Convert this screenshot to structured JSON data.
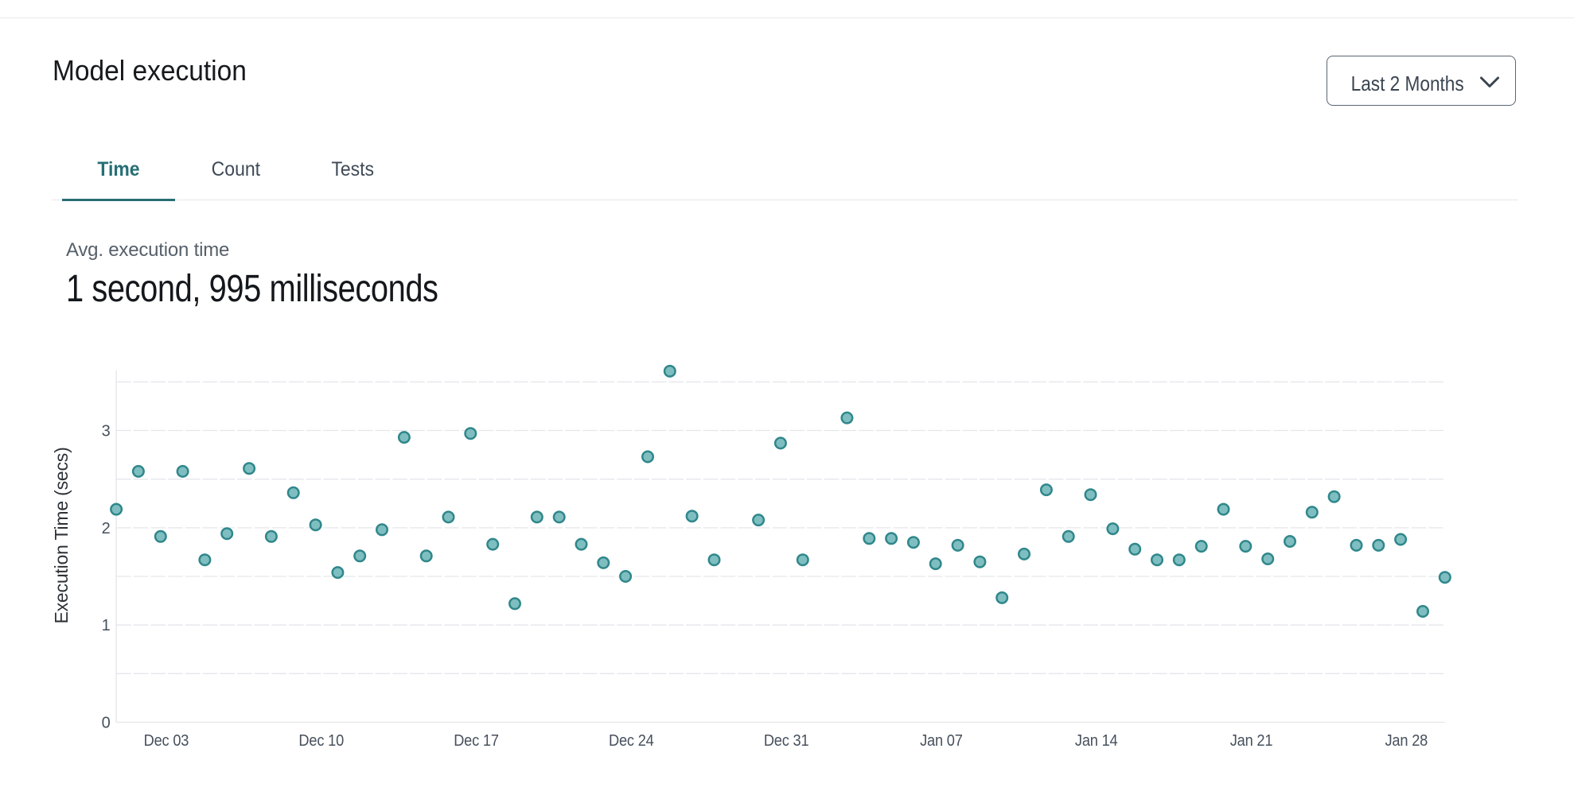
{
  "header": {
    "title": "Model execution",
    "range_selector": {
      "label": "Last 2 Months",
      "icon": "chevron-down-icon"
    }
  },
  "tabs": [
    {
      "label": "Time",
      "active": true
    },
    {
      "label": "Count",
      "active": false
    },
    {
      "label": "Tests",
      "active": false
    }
  ],
  "metric": {
    "label": "Avg. execution time",
    "value": "1 second, 995 milliseconds"
  },
  "colors": {
    "accent_teal": "#266e74",
    "dot_fill": "#7fbec0",
    "dot_stroke": "#2f878b",
    "grid_line": "#e5e6eb",
    "axis_line": "#e4e5e9",
    "tick_text": "#46505c"
  },
  "chart_data": {
    "type": "scatter",
    "title": "",
    "xlabel": "",
    "ylabel": "Execution Time (secs)",
    "x_tick_labels": [
      "Dec 03",
      "Dec 10",
      "Dec 17",
      "Dec 24",
      "Dec 31",
      "Jan 07",
      "Jan 14",
      "Jan 21",
      "Jan 28"
    ],
    "y_tick_labels": [
      "0",
      "1",
      "2",
      "3"
    ],
    "ylim": [
      0,
      3.66
    ],
    "grid": "horizontal dashed lines every 0.5 secs",
    "legend": "none",
    "series": [
      {
        "name": "Avg. execution time per day (secs)",
        "points": [
          {
            "date": "Nov 30",
            "secs": 2.19
          },
          {
            "date": "Dec 01",
            "secs": 2.58
          },
          {
            "date": "Dec 02",
            "secs": 1.91
          },
          {
            "date": "Dec 03",
            "secs": 2.58
          },
          {
            "date": "Dec 04",
            "secs": 1.67
          },
          {
            "date": "Dec 05",
            "secs": 1.94
          },
          {
            "date": "Dec 06",
            "secs": 2.61
          },
          {
            "date": "Dec 07",
            "secs": 1.91
          },
          {
            "date": "Dec 08",
            "secs": 2.36
          },
          {
            "date": "Dec 09",
            "secs": 2.03
          },
          {
            "date": "Dec 10",
            "secs": 1.54
          },
          {
            "date": "Dec 11",
            "secs": 1.71
          },
          {
            "date": "Dec 12",
            "secs": 1.98
          },
          {
            "date": "Dec 13",
            "secs": 2.93
          },
          {
            "date": "Dec 14",
            "secs": 1.71
          },
          {
            "date": "Dec 15",
            "secs": 2.11
          },
          {
            "date": "Dec 16",
            "secs": 2.97
          },
          {
            "date": "Dec 17",
            "secs": 1.83
          },
          {
            "date": "Dec 18",
            "secs": 1.22
          },
          {
            "date": "Dec 19",
            "secs": 2.11
          },
          {
            "date": "Dec 20",
            "secs": 2.11
          },
          {
            "date": "Dec 21",
            "secs": 1.83
          },
          {
            "date": "Dec 22",
            "secs": 1.64
          },
          {
            "date": "Dec 23",
            "secs": 1.5
          },
          {
            "date": "Dec 24",
            "secs": 2.73
          },
          {
            "date": "Dec 25",
            "secs": 3.61
          },
          {
            "date": "Dec 26",
            "secs": 2.12
          },
          {
            "date": "Dec 27",
            "secs": 1.67
          },
          {
            "date": "Dec 29",
            "secs": 2.08
          },
          {
            "date": "Dec 30",
            "secs": 2.87
          },
          {
            "date": "Dec 31",
            "secs": 1.67
          },
          {
            "date": "Jan 02",
            "secs": 3.13
          },
          {
            "date": "Jan 03",
            "secs": 1.89
          },
          {
            "date": "Jan 04",
            "secs": 1.89
          },
          {
            "date": "Jan 05",
            "secs": 1.85
          },
          {
            "date": "Jan 06",
            "secs": 1.63
          },
          {
            "date": "Jan 07",
            "secs": 1.82
          },
          {
            "date": "Jan 08",
            "secs": 1.65
          },
          {
            "date": "Jan 09",
            "secs": 1.28
          },
          {
            "date": "Jan 10",
            "secs": 1.73
          },
          {
            "date": "Jan 11",
            "secs": 2.39
          },
          {
            "date": "Jan 12",
            "secs": 1.91
          },
          {
            "date": "Jan 13",
            "secs": 2.34
          },
          {
            "date": "Jan 14",
            "secs": 1.99
          },
          {
            "date": "Jan 15",
            "secs": 1.78
          },
          {
            "date": "Jan 16",
            "secs": 1.67
          },
          {
            "date": "Jan 17",
            "secs": 1.67
          },
          {
            "date": "Jan 18",
            "secs": 1.81
          },
          {
            "date": "Jan 19",
            "secs": 2.19
          },
          {
            "date": "Jan 20",
            "secs": 1.81
          },
          {
            "date": "Jan 21",
            "secs": 1.68
          },
          {
            "date": "Jan 22",
            "secs": 1.86
          },
          {
            "date": "Jan 23",
            "secs": 2.16
          },
          {
            "date": "Jan 24",
            "secs": 2.32
          },
          {
            "date": "Jan 25",
            "secs": 1.82
          },
          {
            "date": "Jan 26",
            "secs": 1.82
          },
          {
            "date": "Jan 27",
            "secs": 1.88
          },
          {
            "date": "Jan 28",
            "secs": 1.14
          },
          {
            "date": "Jan 29",
            "secs": 1.49
          }
        ]
      }
    ]
  }
}
